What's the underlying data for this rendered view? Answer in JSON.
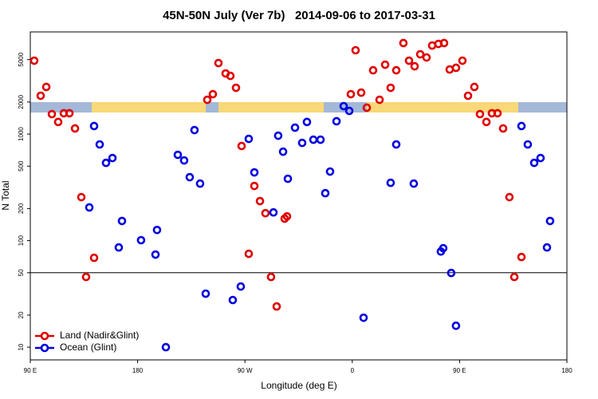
{
  "chart_data": {
    "type": "scatter",
    "title": "45N-50N July (Ver 7b)   2014-09-06 to 2017-03-31",
    "xlabel": "Longitude (deg E)",
    "ylabel": "N Total",
    "log_y": true,
    "xlim": [
      90,
      540
    ],
    "ylim": [
      7.6,
      9100
    ],
    "xticks": [
      {
        "value": 90,
        "label": "90 E"
      },
      180,
      {
        "value": 270,
        "label": "90 W"
      },
      {
        "value": 360,
        "label": "0"
      },
      {
        "value": 450,
        "label": "90 E"
      },
      {
        "value": 540,
        "label": "180"
      }
    ],
    "yticks": [
      10,
      20,
      50,
      100,
      200,
      500,
      1000,
      2000,
      5000
    ],
    "reference_line": 50,
    "legend": "bottom-left",
    "series": [
      {
        "name": "Land (Nadir&Glint)",
        "color": "#e00000",
        "x": [
          93.3,
          98.7,
          103.4,
          108.1,
          113.4,
          118.1,
          122.8,
          127.5,
          132.8,
          136.8,
          143.5,
          238.4,
          243.1,
          247.8,
          253.8,
          257.8,
          262.5,
          267.2,
          273.2,
          277.9,
          282.6,
          287.2,
          291.9,
          296.6,
          303.3,
          305.3,
          358.8,
          362.8,
          367.5,
          372.2,
          377.5,
          382.9,
          387.6,
          392.2,
          396.9,
          402.9,
          407.6,
          412.3,
          417.0,
          422.3,
          427.0,
          432.3,
          437.0,
          441.7,
          447.0,
          452.4,
          457.1,
          462.4,
          467.1,
          472.5,
          477.1,
          481.8,
          486.5,
          491.8,
          495.9,
          501.9
        ],
        "values": [
          4890,
          2290,
          2770,
          1540,
          1300,
          1570,
          1570,
          1130,
          256,
          45.6,
          69,
          2100,
          2370,
          4640,
          3710,
          3520,
          2720,
          773,
          75.2,
          326,
          235,
          181,
          45.6,
          24.1,
          161,
          169,
          2370,
          6120,
          2450,
          1770,
          3970,
          2100,
          4480,
          2720,
          3970,
          7150,
          4890,
          4330,
          5610,
          5240,
          6780,
          7020,
          7150,
          4040,
          4190,
          4890,
          2290,
          2770,
          1540,
          1300,
          1570,
          1570,
          1130,
          256,
          45.6,
          70.2
        ]
      },
      {
        "name": "Ocean (Glint)",
        "color": "#0000e0",
        "x": [
          143.5,
          139.5,
          148.2,
          153.5,
          158.9,
          164.2,
          166.9,
          182.9,
          195.0,
          196.3,
          203.7,
          213.7,
          219.0,
          223.7,
          227.7,
          232.4,
          237.1,
          259.8,
          266.5,
          273.2,
          277.9,
          293.9,
          297.9,
          302.0,
          306.0,
          312.0,
          318.0,
          322.0,
          327.4,
          333.4,
          337.4,
          341.4,
          346.8,
          352.8,
          357.5,
          369.5,
          392.2,
          396.9,
          411.6,
          434.3,
          436.3,
          443.0,
          447.0,
          501.9,
          507.2,
          512.6,
          517.9,
          523.3,
          525.9
        ],
        "values": [
          1190,
          205,
          800,
          537,
          596,
          86.3,
          153,
          101,
          74,
          126,
          10,
          639,
          566,
          394,
          1090,
          343,
          31.8,
          27.7,
          37.1,
          902,
          437,
          184,
          966,
          684,
          381,
          1150,
          827,
          1300,
          886,
          886,
          279,
          445,
          1320,
          1830,
          1650,
          18.9,
          349,
          800,
          343,
          79,
          84.9,
          49.7,
          15.9,
          1190,
          800,
          537,
          596,
          86.3,
          153
        ]
      }
    ]
  }
}
